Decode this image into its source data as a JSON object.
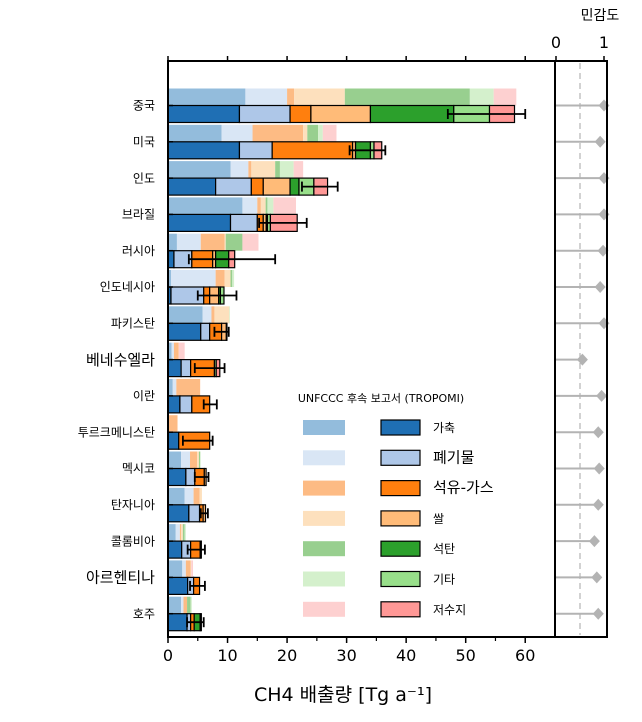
{
  "chart_data": {
    "type": "bar",
    "orientation": "horizontal",
    "stacked": true,
    "xlabel": "CH4 배출량 [Tg a⁻¹]",
    "xlim": [
      0,
      65
    ],
    "xticks": [
      0,
      10,
      20,
      30,
      40,
      50,
      60
    ],
    "sens_label": "민감도",
    "sens_ticks": [
      "0",
      "1"
    ],
    "legend_title": "UNFCCC 후속 보고서 (TROPOMI)",
    "categories": [
      "중국",
      "미국",
      "인도",
      "브라질",
      "러시아",
      "인도네시아",
      "파키스탄",
      "베네수엘라",
      "이란",
      "투르크메니스탄",
      "멕시코",
      "탄자니아",
      "콜롬비아",
      "아르헨티나",
      "호주"
    ],
    "series": [
      {
        "name": "가축",
        "dark": "#1f6fb4",
        "light": "#93bcdc"
      },
      {
        "name": "폐기물",
        "dark": "#aec7e8",
        "light": "#d9e6f5"
      },
      {
        "name": "석유-가스",
        "dark": "#ff7f0e",
        "light": "#fdbb84"
      },
      {
        "name": "쌀",
        "dark": "#ffbb78",
        "light": "#fde0bd"
      },
      {
        "name": "석탄",
        "dark": "#2ca02c",
        "light": "#98cf8f"
      },
      {
        "name": "기타",
        "dark": "#98df8a",
        "light": "#d4f0cc"
      },
      {
        "name": "저수지",
        "dark": "#ff9896",
        "light": "#fdd0d0"
      }
    ],
    "unfccc_values": [
      [
        13,
        7,
        1.2,
        8.5,
        21,
        4,
        3.8
      ],
      [
        9,
        5.2,
        8.5,
        0.7,
        1.8,
        0.8,
        2.3
      ],
      [
        10.5,
        3,
        0.5,
        4,
        0.8,
        2.3,
        1.6
      ],
      [
        12.5,
        2.5,
        0.6,
        0.8,
        0.3,
        1,
        3.8
      ],
      [
        1.5,
        4,
        4,
        0.2,
        2.8,
        0,
        2.7
      ],
      [
        0.5,
        7.5,
        1.5,
        1,
        0.3,
        0.3,
        0
      ],
      [
        5.8,
        1.5,
        0.5,
        2.5,
        0,
        0.1,
        0
      ],
      [
        0.6,
        0.4,
        0.8,
        0,
        0,
        0,
        1
      ],
      [
        0.8,
        0.6,
        4,
        0,
        0,
        0,
        0
      ],
      [
        0,
        0,
        1.6,
        0,
        0,
        0,
        0
      ],
      [
        2.2,
        1.5,
        1.2,
        0.3,
        0.2,
        0.1,
        0
      ],
      [
        2.8,
        1.5,
        1,
        0.4,
        0,
        0,
        0
      ],
      [
        1.3,
        0.7,
        0.2,
        0.3,
        0.3,
        0.2,
        0
      ],
      [
        2.4,
        0.6,
        0.8,
        0.1,
        0,
        0,
        0.3
      ],
      [
        2.2,
        0.4,
        0.6,
        0,
        0.6,
        0.2,
        0
      ]
    ],
    "tropomi_values": [
      [
        12,
        8.5,
        3.5,
        10,
        14,
        6,
        4.2
      ],
      [
        12,
        5.5,
        13.5,
        0.5,
        2.5,
        0.6,
        1.3
      ],
      [
        8,
        6,
        2,
        4.5,
        1.5,
        2.5,
        2.3
      ],
      [
        10.5,
        4.5,
        1,
        0.5,
        0.2,
        0.5,
        4.5
      ],
      [
        1,
        3,
        3.5,
        0.5,
        2.2,
        0,
        1
      ],
      [
        0.5,
        5.5,
        1,
        1.5,
        0.3,
        0.6,
        0
      ],
      [
        5.5,
        1.5,
        2,
        0.8,
        0,
        0.1,
        0
      ],
      [
        2.2,
        1.6,
        4,
        0,
        0,
        0.3,
        0.6
      ],
      [
        2,
        2,
        3,
        0,
        0,
        0,
        0
      ],
      [
        1.8,
        0,
        5.2,
        0,
        0,
        0,
        0
      ],
      [
        3,
        1.5,
        1.6,
        0.3,
        0,
        0,
        0
      ],
      [
        3.5,
        1.8,
        0.6,
        0.4,
        0,
        0,
        0
      ],
      [
        2.3,
        1.5,
        1.6,
        0.2,
        0,
        0,
        0
      ],
      [
        3.3,
        1,
        1,
        0,
        0,
        0,
        0
      ],
      [
        3.2,
        0.6,
        0.6,
        0,
        1,
        0.2,
        0
      ]
    ],
    "error_ranges": [
      [
        47,
        60
      ],
      [
        30.5,
        36.5
      ],
      [
        22.5,
        28.5
      ],
      [
        15.3,
        23.3
      ],
      [
        3.5,
        18
      ],
      [
        5,
        11.5
      ],
      [
        7.8,
        10.2
      ],
      [
        4.5,
        9.5
      ],
      [
        6,
        8.2
      ],
      [
        2.5,
        7.5
      ],
      [
        4.5,
        6.8
      ],
      [
        5.5,
        6.7
      ],
      [
        3.3,
        6.2
      ],
      [
        3.7,
        6.2
      ],
      [
        3.2,
        6
      ]
    ],
    "sensitivity": [
      1,
      0.92,
      1,
      1,
      0.98,
      0.92,
      1,
      0.55,
      0.95,
      0.88,
      0.9,
      0.88,
      0.8,
      0.85,
      0.88
    ],
    "sens_reference": 0.5
  }
}
